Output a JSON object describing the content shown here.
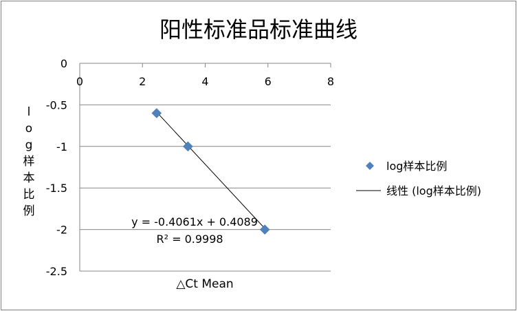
{
  "chart_data": {
    "type": "scatter",
    "title": "阳性标准品标准曲线",
    "xlabel": "△Ct Mean",
    "ylabel": "log样本比例",
    "xlim": [
      0,
      8
    ],
    "ylim": [
      -2.5,
      0
    ],
    "x_ticks": [
      "0",
      "2",
      "4",
      "6",
      "8"
    ],
    "y_ticks": [
      "0",
      "-0.5",
      "-1",
      "-1.5",
      "-2",
      "-2.5"
    ],
    "grid": "horizontal",
    "legend_position": "right",
    "series": [
      {
        "name": "log样本比例",
        "color": "#4f81bd",
        "marker": "diamond",
        "x": [
          2.45,
          3.45,
          5.9
        ],
        "y": [
          -0.6,
          -1.0,
          -2.0
        ]
      }
    ],
    "trendline": {
      "name": "线性 (log样本比例)",
      "color": "#000000",
      "slope": -0.4061,
      "intercept": 0.4089,
      "x_range": [
        2.45,
        5.9
      ],
      "equation_label": "y = -0.4061x + 0.4089",
      "r2_label": "R² = 0.9998"
    }
  }
}
